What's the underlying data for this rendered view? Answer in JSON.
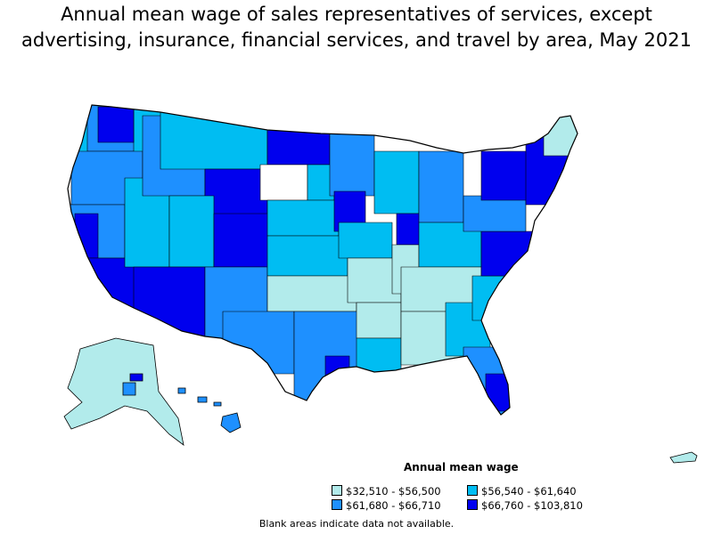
{
  "title_lines": [
    "Annual mean wage of sales representatives of services, except",
    "advertising, insurance, financial services, and travel by area, May 2021"
  ],
  "legend": {
    "title": "Annual mean wage",
    "items": [
      {
        "label": "$32,510 - $56,500",
        "color": "#b2ebeb"
      },
      {
        "label": "$56,540 - $61,640",
        "color": "#00bdf2"
      },
      {
        "label": "$61,680 - $66,710",
        "color": "#1e90ff"
      },
      {
        "label": "$66,760 - $103,810",
        "color": "#0000ee"
      }
    ]
  },
  "note": "Blank areas indicate data not available.",
  "colors": {
    "outline": "#000000",
    "no_data": "#ffffff"
  }
}
